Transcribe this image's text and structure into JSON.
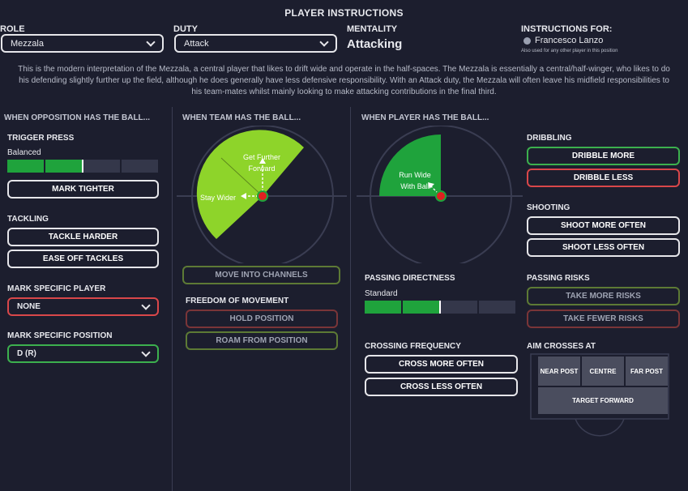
{
  "title": "PLAYER INSTRUCTIONS",
  "header": {
    "role_label": "ROLE",
    "role_value": "Mezzala",
    "duty_label": "DUTY",
    "duty_value": "Attack",
    "mentality_label": "MENTALITY",
    "mentality_value": "Attacking",
    "instructions_for_label": "INSTRUCTIONS FOR:",
    "player_name": "Francesco Lanzo",
    "also_used": "Also used for any other player in this position"
  },
  "description": "This is the modern interpretation of the Mezzala, a central player that likes to drift wide and operate in the half-spaces. The Mezzala is essentially a central/half-winger, who likes to do his defending slightly further up the field, although he does generally have less defensive responsibility. With an Attack duty, the Mezzala will often leave his midfield responsibilities to his team-mates whilst mainly looking to make attacking contributions in the final third.",
  "opposition": {
    "heading": "WHEN OPPOSITION HAS THE BALL...",
    "trigger_press": "TRIGGER PRESS",
    "trigger_value": "Balanced",
    "trigger_level": 0.5,
    "mark_tighter": "MARK TIGHTER",
    "tackling": "TACKLING",
    "tackle_harder": "TACKLE HARDER",
    "ease_off": "EASE OFF TACKLES",
    "mark_player_label": "MARK SPECIFIC PLAYER",
    "mark_player_value": "NONE",
    "mark_position_label": "MARK SPECIFIC POSITION",
    "mark_position_value": "D (R)"
  },
  "team": {
    "heading": "WHEN TEAM HAS THE BALL...",
    "get_further": "Get Further",
    "forward": "Forward",
    "stay_wider": "Stay Wider",
    "channels": "MOVE INTO CHANNELS",
    "freedom": "FREEDOM OF MOVEMENT",
    "hold": "HOLD POSITION",
    "roam": "ROAM FROM POSITION"
  },
  "player": {
    "heading": "WHEN PLAYER HAS THE BALL...",
    "run_wide": "Run Wide",
    "with_ball": "With Ball",
    "passing_directness": "PASSING DIRECTNESS",
    "passing_value": "Standard",
    "passing_level": 0.5,
    "crossing_frequency": "CROSSING FREQUENCY",
    "cross_more": "CROSS MORE OFTEN",
    "cross_less": "CROSS LESS OFTEN",
    "dribbling": "DRIBBLING",
    "dribble_more": "DRIBBLE MORE",
    "dribble_less": "DRIBBLE LESS",
    "shooting": "SHOOTING",
    "shoot_more": "SHOOT MORE OFTEN",
    "shoot_less": "SHOOT LESS OFTEN",
    "passing_risks": "PASSING RISKS",
    "more_risks": "TAKE MORE RISKS",
    "fewer_risks": "TAKE FEWER RISKS",
    "aim_crosses": "AIM CROSSES AT",
    "near_post": "NEAR POST",
    "centre": "CENTRE",
    "far_post": "FAR POST",
    "target_forward": "TARGET FORWARD"
  },
  "colors": {
    "bg": "#1c1e2e",
    "green": "#3cb04e",
    "red": "#d9474a",
    "lime": "#8ed42a",
    "bar_on": "#1fa33c"
  }
}
